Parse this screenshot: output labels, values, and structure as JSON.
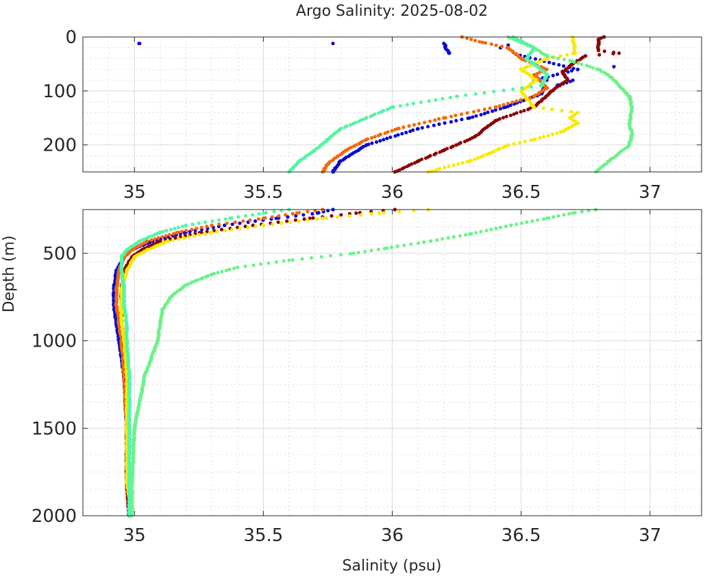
{
  "chart_data": {
    "type": "scatter",
    "title": "Argo Salinity: 2025-08-02",
    "xlabel": "Salinity (psu)",
    "ylabel": "Depth (m)",
    "xlim": [
      34.8,
      37.2
    ],
    "x_ticks": [
      35,
      35.5,
      36,
      36.5,
      37
    ],
    "x_tick_labels": [
      "35",
      "35.5",
      "36",
      "36.5",
      "37"
    ],
    "grid": true,
    "panels": [
      {
        "id": "upper",
        "ylim": [
          0,
          250
        ],
        "y_ticks": [
          0,
          100,
          200
        ],
        "y_tick_labels": [
          "0",
          "100",
          "200"
        ],
        "y_minor_step": 20,
        "show_xlabel": false
      },
      {
        "id": "lower",
        "ylim": [
          250,
          2000
        ],
        "y_ticks": [
          500,
          1000,
          1500,
          2000
        ],
        "y_tick_labels": [
          "500",
          "1000",
          "1500",
          "2000"
        ],
        "y_minor_step": 100,
        "show_xlabel": true
      }
    ],
    "series": [
      {
        "name": "profile-blue",
        "color": "#0a0ad2",
        "profile": [
          [
            12,
            35.02
          ],
          [
            12,
            35.77
          ],
          [
            12,
            36.2
          ],
          [
            30,
            36.22
          ],
          [
            15,
            36.45
          ],
          [
            20,
            36.42
          ],
          [
            32,
            36.48
          ],
          [
            60,
            36.72
          ],
          [
            80,
            36.55
          ],
          [
            55,
            36.86
          ],
          [
            90,
            36.64
          ],
          [
            80,
            36.6
          ],
          [
            105,
            36.58
          ],
          [
            130,
            36.44
          ],
          [
            150,
            36.3
          ],
          [
            170,
            36.1
          ],
          [
            200,
            35.9
          ],
          [
            230,
            35.8
          ],
          [
            250,
            35.77
          ],
          [
            270,
            35.71
          ],
          [
            300,
            35.55
          ],
          [
            340,
            35.35
          ],
          [
            380,
            35.2
          ],
          [
            430,
            35.07
          ],
          [
            480,
            34.99
          ],
          [
            520,
            34.96
          ],
          [
            600,
            34.93
          ],
          [
            700,
            34.92
          ],
          [
            800,
            34.92
          ],
          [
            900,
            34.93
          ],
          [
            1000,
            34.94
          ],
          [
            1200,
            34.96
          ],
          [
            1500,
            34.97
          ],
          [
            1800,
            34.97
          ],
          [
            2000,
            34.98
          ]
        ]
      },
      {
        "name": "profile-orange",
        "color": "#f06a0f",
        "profile": [
          [
            0,
            36.27
          ],
          [
            10,
            36.35
          ],
          [
            20,
            36.45
          ],
          [
            40,
            36.5
          ],
          [
            60,
            36.6
          ],
          [
            70,
            36.55
          ],
          [
            95,
            36.6
          ],
          [
            110,
            36.55
          ],
          [
            130,
            36.4
          ],
          [
            150,
            36.2
          ],
          [
            170,
            36.02
          ],
          [
            190,
            35.9
          ],
          [
            210,
            35.82
          ],
          [
            235,
            35.75
          ],
          [
            250,
            35.73
          ],
          [
            270,
            35.63
          ],
          [
            300,
            35.5
          ],
          [
            340,
            35.3
          ],
          [
            380,
            35.17
          ],
          [
            430,
            35.05
          ],
          [
            480,
            34.99
          ],
          [
            520,
            34.96
          ],
          [
            600,
            34.94
          ],
          [
            700,
            34.93
          ],
          [
            800,
            34.93
          ],
          [
            900,
            34.94
          ],
          [
            1000,
            34.95
          ],
          [
            1200,
            34.96
          ],
          [
            1500,
            34.97
          ],
          [
            1800,
            34.97
          ],
          [
            2000,
            34.98
          ]
        ]
      },
      {
        "name": "profile-darkred",
        "color": "#8a0606",
        "profile": [
          [
            0,
            36.82
          ],
          [
            5,
            36.8
          ],
          [
            25,
            36.8
          ],
          [
            30,
            36.88
          ],
          [
            35,
            36.75
          ],
          [
            50,
            36.7
          ],
          [
            65,
            36.66
          ],
          [
            80,
            36.68
          ],
          [
            100,
            36.62
          ],
          [
            130,
            36.55
          ],
          [
            155,
            36.4
          ],
          [
            185,
            36.32
          ],
          [
            210,
            36.2
          ],
          [
            230,
            36.1
          ],
          [
            250,
            36.01
          ],
          [
            270,
            35.86
          ],
          [
            300,
            35.68
          ],
          [
            340,
            35.46
          ],
          [
            380,
            35.26
          ],
          [
            430,
            35.1
          ],
          [
            480,
            35.03
          ],
          [
            520,
            34.99
          ],
          [
            600,
            34.96
          ],
          [
            700,
            34.95
          ],
          [
            800,
            34.95
          ],
          [
            900,
            34.95
          ],
          [
            1000,
            34.96
          ],
          [
            1200,
            34.97
          ],
          [
            1500,
            34.97
          ],
          [
            1800,
            34.97
          ],
          [
            2000,
            34.98
          ]
        ]
      },
      {
        "name": "profile-yellow",
        "color": "#f7ea00",
        "profile": [
          [
            0,
            36.7
          ],
          [
            30,
            36.71
          ],
          [
            40,
            36.6
          ],
          [
            60,
            36.5
          ],
          [
            80,
            36.56
          ],
          [
            100,
            36.5
          ],
          [
            130,
            36.55
          ],
          [
            140,
            36.72
          ],
          [
            150,
            36.69
          ],
          [
            160,
            36.72
          ],
          [
            175,
            36.66
          ],
          [
            190,
            36.55
          ],
          [
            200,
            36.45
          ],
          [
            215,
            36.38
          ],
          [
            230,
            36.3
          ],
          [
            245,
            36.18
          ],
          [
            250,
            36.14
          ],
          [
            270,
            35.95
          ],
          [
            300,
            35.73
          ],
          [
            340,
            35.5
          ],
          [
            380,
            35.3
          ],
          [
            430,
            35.13
          ],
          [
            480,
            35.05
          ],
          [
            520,
            35.0
          ],
          [
            600,
            34.97
          ],
          [
            700,
            34.95
          ],
          [
            800,
            34.95
          ],
          [
            900,
            34.95
          ],
          [
            1000,
            34.96
          ],
          [
            1200,
            34.97
          ],
          [
            1500,
            34.97
          ],
          [
            1800,
            34.97
          ],
          [
            1900,
            34.98
          ]
        ]
      },
      {
        "name": "profile-green",
        "color": "#6cf28a",
        "profile": [
          [
            0,
            36.45
          ],
          [
            10,
            36.5
          ],
          [
            20,
            36.55
          ],
          [
            35,
            36.6
          ],
          [
            45,
            36.7
          ],
          [
            60,
            36.8
          ],
          [
            75,
            36.85
          ],
          [
            90,
            36.88
          ],
          [
            110,
            36.92
          ],
          [
            130,
            36.93
          ],
          [
            160,
            36.92
          ],
          [
            180,
            36.93
          ],
          [
            200,
            36.92
          ],
          [
            215,
            36.88
          ],
          [
            230,
            36.84
          ],
          [
            250,
            36.79
          ],
          [
            270,
            36.7
          ],
          [
            300,
            36.6
          ],
          [
            340,
            36.46
          ],
          [
            390,
            36.3
          ],
          [
            430,
            36.15
          ],
          [
            470,
            35.98
          ],
          [
            500,
            35.85
          ],
          [
            540,
            35.6
          ],
          [
            580,
            35.4
          ],
          [
            620,
            35.3
          ],
          [
            680,
            35.2
          ],
          [
            750,
            35.14
          ],
          [
            820,
            35.11
          ],
          [
            900,
            35.1
          ],
          [
            1000,
            35.09
          ],
          [
            1200,
            35.04
          ],
          [
            1500,
            35.0
          ],
          [
            1800,
            34.99
          ],
          [
            2000,
            34.99
          ]
        ]
      },
      {
        "name": "profile-aquamarine",
        "color": "#55f5a5",
        "profile": [
          [
            0,
            36.47
          ],
          [
            20,
            36.55
          ],
          [
            40,
            36.52
          ],
          [
            50,
            36.55
          ],
          [
            70,
            36.6
          ],
          [
            90,
            36.58
          ],
          [
            110,
            36.25
          ],
          [
            130,
            36.0
          ],
          [
            150,
            35.9
          ],
          [
            170,
            35.8
          ],
          [
            190,
            35.75
          ],
          [
            210,
            35.7
          ],
          [
            230,
            35.64
          ],
          [
            250,
            35.6
          ],
          [
            270,
            35.5
          ],
          [
            300,
            35.37
          ],
          [
            340,
            35.2
          ],
          [
            380,
            35.1
          ],
          [
            430,
            35.02
          ],
          [
            480,
            34.97
          ],
          [
            520,
            34.95
          ],
          [
            600,
            34.95
          ],
          [
            700,
            34.96
          ],
          [
            800,
            34.96
          ],
          [
            900,
            34.97
          ],
          [
            1000,
            34.97
          ],
          [
            1200,
            34.98
          ],
          [
            1500,
            34.98
          ],
          [
            1800,
            34.98
          ],
          [
            2000,
            34.98
          ]
        ]
      }
    ]
  }
}
